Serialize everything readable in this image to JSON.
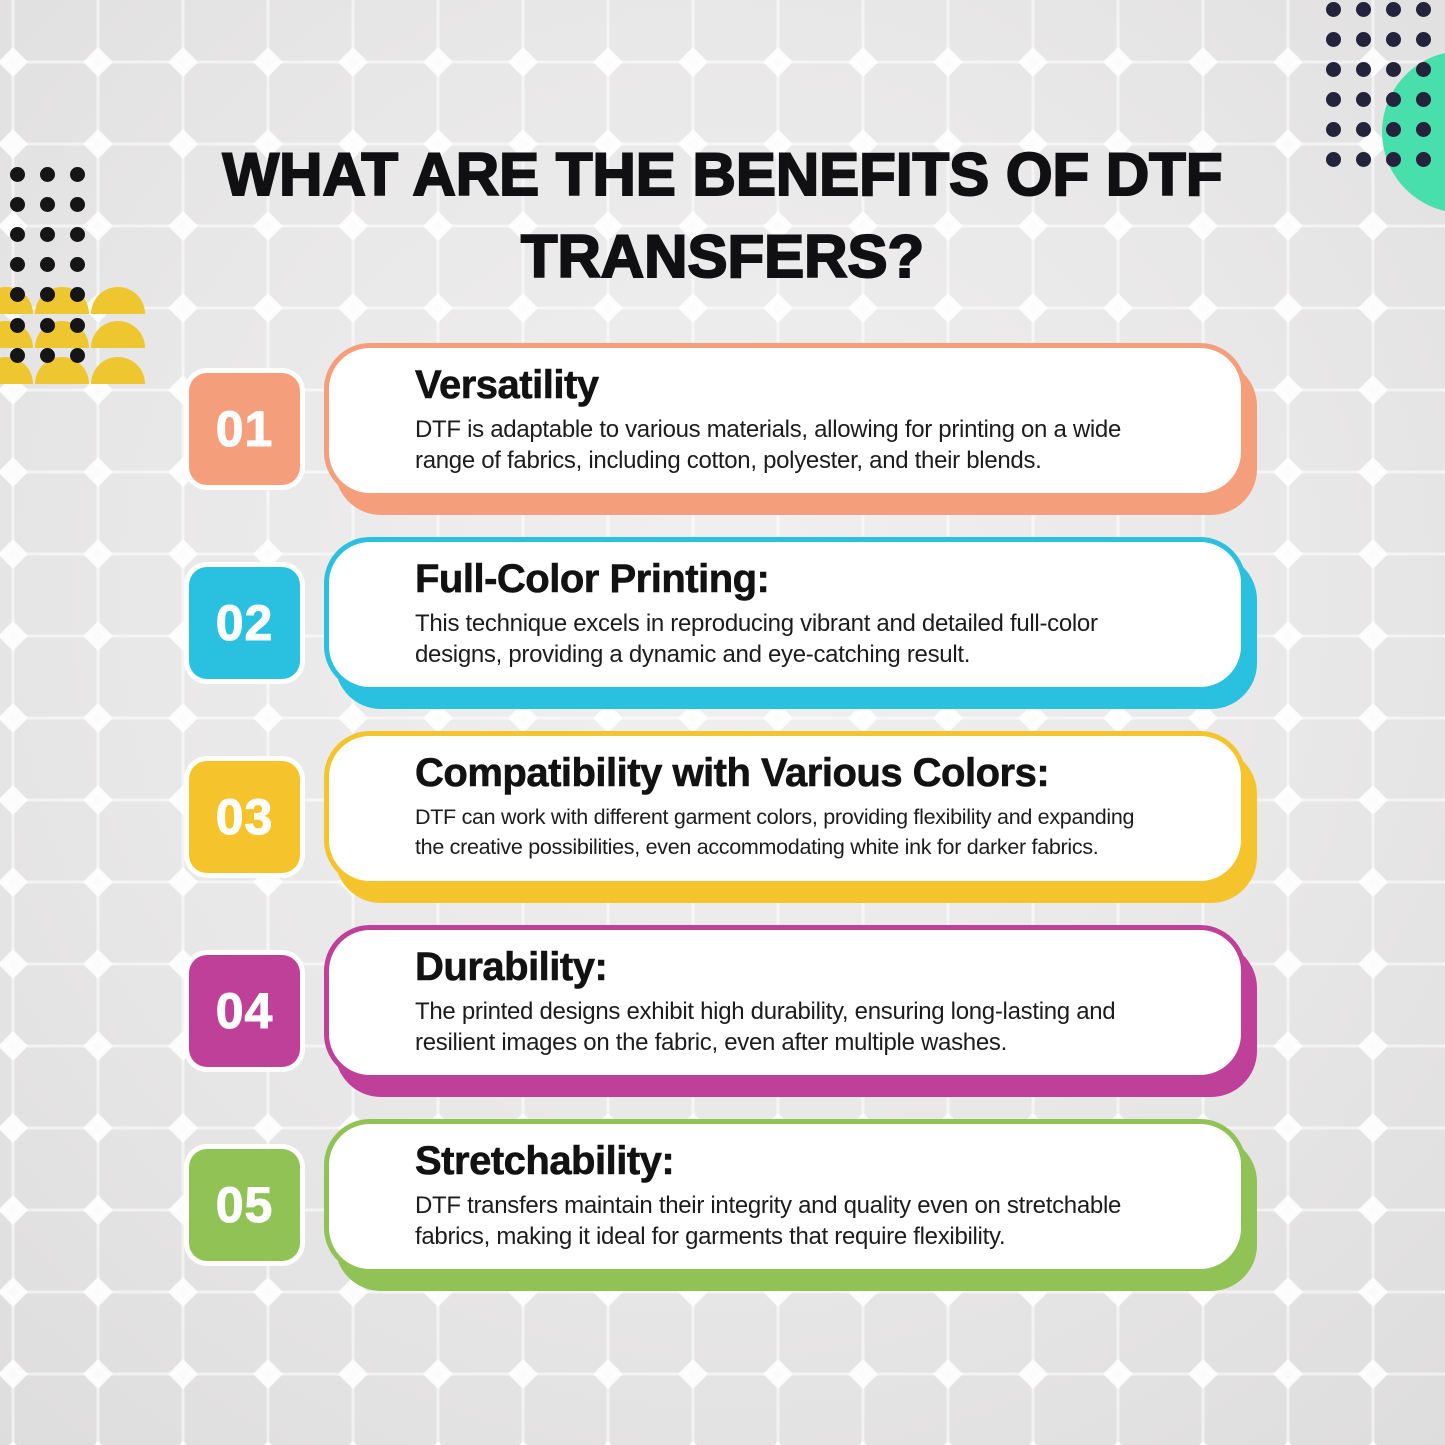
{
  "page": {
    "title": "WHAT ARE THE BENEFITS OF DTF TRANSFERS?",
    "title_lines": "WHAT ARE THE BENEFITS OF DTF\nTRANSFERS?",
    "heading_color": "#101013"
  },
  "cards": [
    {
      "number": "01",
      "title": "Versatility",
      "body": "DTF is adaptable to various materials, allowing for printing on a wide\nrange of fabrics, including cotton, polyester, and their blends.",
      "color": "#F59E7B"
    },
    {
      "number": "02",
      "title": "Full-Color Printing:",
      "body": "This technique excels in reproducing vibrant and detailed full-color\ndesigns, providing a dynamic and eye-catching result.",
      "color": "#2AC0DF"
    },
    {
      "number": "03",
      "title": "Compatibility with Various Colors:",
      "body": "DTF can work with different garment colors, providing flexibility and expanding\nthe creative possibilities, even accommodating white ink for darker fabrics.",
      "color": "#F5C32B"
    },
    {
      "number": "04",
      "title": "Durability:",
      "body": "The printed designs exhibit high durability, ensuring long-lasting and\nresilient images on the fabric, even after multiple washes.",
      "color": "#BE4098"
    },
    {
      "number": "05",
      "title": "Stretchability:",
      "body": "DTF transfers maintain their integrity and quality even on stretchable\nfabrics, making it ideal for garments that require flexibility.",
      "color": "#90C256"
    }
  ],
  "decorations": {
    "background": "#E9E8E8",
    "grid_line_color": "#FFFFFF",
    "teal_circle_color": "#48DFAC",
    "dome_color": "#EEC62F",
    "dot_color_top_left": "#151515",
    "dot_color_top_right": "#23233C",
    "card_background": "#FFFFFF",
    "body_text_color": "#1C1C1C"
  }
}
